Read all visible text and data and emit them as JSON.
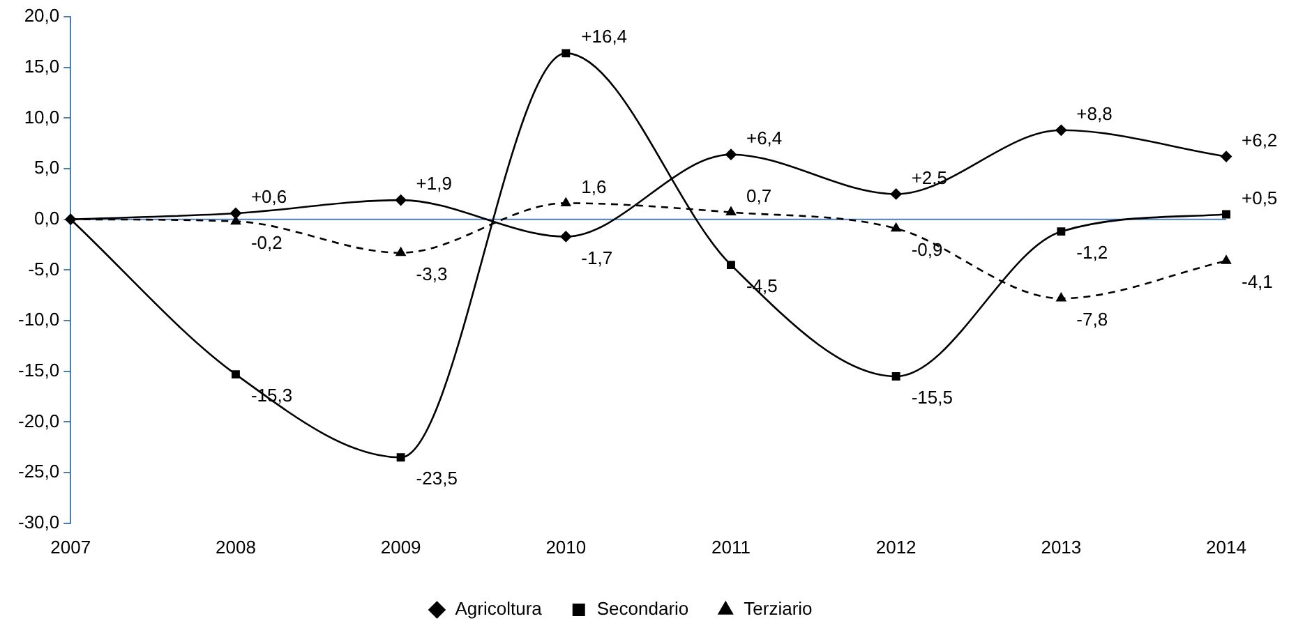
{
  "chart_data": {
    "type": "line",
    "categories": [
      "2007",
      "2008",
      "2009",
      "2010",
      "2011",
      "2012",
      "2013",
      "2014"
    ],
    "series": [
      {
        "name": "Agricoltura",
        "color": "#000000",
        "marker": "diamond",
        "line_style": "solid",
        "values": [
          0,
          0.6,
          1.9,
          -1.7,
          6.4,
          2.5,
          8.8,
          6.2
        ],
        "value_labels": [
          null,
          "+0,6",
          "+1,9",
          "-1,7",
          "+6,4",
          "+2,5",
          "+8,8",
          "+6,2"
        ]
      },
      {
        "name": "Secondario",
        "color": "#000000",
        "marker": "square",
        "line_style": "solid",
        "values": [
          0,
          -15.3,
          -23.5,
          16.4,
          -4.5,
          -15.5,
          -1.2,
          0.5
        ],
        "value_labels": [
          null,
          "-15,3",
          "-23,5",
          "+16,4",
          "-4,5",
          "-15,5",
          "-1,2",
          "+0,5"
        ]
      },
      {
        "name": "Terziario",
        "color": "#000000",
        "marker": "triangle",
        "line_style": "dashed",
        "values": [
          0,
          -0.2,
          -3.3,
          1.6,
          0.7,
          -0.9,
          -7.8,
          -4.1
        ],
        "value_labels": [
          null,
          "-0,2",
          "-3,3",
          "1,6",
          "0,7",
          "-0,9",
          "-7,8",
          "-4,1"
        ]
      }
    ],
    "ylim": [
      -30,
      20
    ],
    "yticks": [
      {
        "value": -30,
        "label": "-30,0"
      },
      {
        "value": -25,
        "label": "-25,0"
      },
      {
        "value": -20,
        "label": "-20,0"
      },
      {
        "value": -15,
        "label": "-15,0"
      },
      {
        "value": -10,
        "label": "-10,0"
      },
      {
        "value": -5,
        "label": "-5,0"
      },
      {
        "value": 0,
        "label": "0,0"
      },
      {
        "value": 5,
        "label": "5,0"
      },
      {
        "value": 10,
        "label": "10,0"
      },
      {
        "value": 15,
        "label": "15,0"
      },
      {
        "value": 20,
        "label": "20,0"
      }
    ],
    "ref_lines": [
      {
        "axis": "y",
        "value": 0,
        "color": "#4a7ebb"
      }
    ],
    "grid": false,
    "legend": "bottom"
  }
}
